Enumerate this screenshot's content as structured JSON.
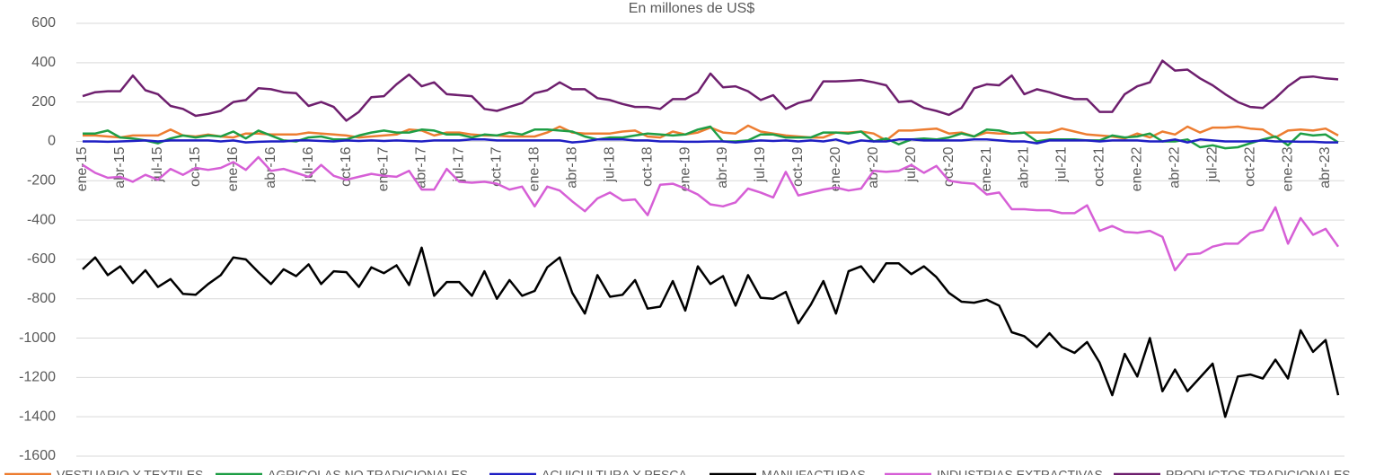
{
  "chart_data": {
    "type": "line",
    "title": "En millones de US$",
    "categories": [
      "ene-15",
      null,
      null,
      "abr-15",
      null,
      null,
      "jul-15",
      null,
      null,
      "oct-15",
      null,
      null,
      "ene-16",
      null,
      null,
      "abr-16",
      null,
      null,
      "jul-16",
      null,
      null,
      "oct-16",
      null,
      null,
      "ene-17",
      null,
      null,
      "abr-17",
      null,
      null,
      "jul-17",
      null,
      null,
      "oct-17",
      null,
      null,
      "ene-18",
      null,
      null,
      "abr-18",
      null,
      null,
      "jul-18",
      null,
      null,
      "oct-18",
      null,
      null,
      "ene-19",
      null,
      null,
      "abr-19",
      null,
      null,
      "jul-19",
      null,
      null,
      "oct-19",
      null,
      null,
      "ene-20",
      null,
      null,
      "abr-20",
      null,
      null,
      "jul-20",
      null,
      null,
      "oct-20",
      null,
      null,
      "ene-21",
      null,
      null,
      "abr-21",
      null,
      null,
      "jul-21",
      null,
      null,
      "oct-21",
      null,
      null,
      "ene-22",
      null,
      null,
      "abr-22",
      null,
      null,
      "jul-22",
      null,
      null,
      "oct-22",
      null,
      null,
      "ene-23",
      null,
      null,
      "abr-23",
      null
    ],
    "series": [
      {
        "name": "VESTUARIO Y TEXTILES",
        "color": "#ed7d31",
        "values": [
          30,
          30,
          25,
          20,
          30,
          30,
          30,
          60,
          30,
          25,
          35,
          25,
          20,
          40,
          40,
          35,
          35,
          35,
          45,
          40,
          35,
          30,
          20,
          25,
          30,
          35,
          60,
          55,
          30,
          45,
          45,
          35,
          30,
          30,
          25,
          25,
          25,
          45,
          75,
          45,
          40,
          40,
          40,
          50,
          55,
          25,
          20,
          50,
          35,
          45,
          70,
          45,
          40,
          80,
          50,
          40,
          30,
          25,
          20,
          20,
          45,
          45,
          50,
          40,
          5,
          55,
          55,
          60,
          65,
          40,
          45,
          25,
          45,
          40,
          40,
          45,
          45,
          45,
          65,
          50,
          35,
          30,
          25,
          15,
          40,
          20,
          50,
          35,
          75,
          45,
          70,
          70,
          75,
          65,
          60,
          20,
          55,
          60,
          55,
          65,
          30
        ]
      },
      {
        "name": "AGRICOLAS NO TRADICIONALES",
        "color": "#1e9e45",
        "values": [
          40,
          40,
          55,
          20,
          15,
          5,
          -10,
          15,
          30,
          20,
          30,
          25,
          50,
          15,
          55,
          30,
          5,
          0,
          20,
          25,
          10,
          10,
          30,
          45,
          55,
          45,
          45,
          60,
          55,
          35,
          35,
          20,
          35,
          30,
          45,
          35,
          60,
          60,
          55,
          50,
          25,
          10,
          20,
          20,
          30,
          40,
          35,
          30,
          35,
          60,
          75,
          0,
          0,
          5,
          35,
          35,
          20,
          20,
          20,
          45,
          45,
          40,
          50,
          0,
          15,
          -15,
          10,
          15,
          10,
          20,
          40,
          25,
          60,
          55,
          40,
          45,
          0,
          10,
          10,
          10,
          5,
          5,
          30,
          20,
          25,
          40,
          0,
          0,
          10,
          -30,
          -20,
          -35,
          -30,
          -10,
          10,
          25,
          -20,
          40,
          30,
          35,
          -5
        ]
      },
      {
        "name": "ACUICULTURA Y PESCA",
        "color": "#1f1fc4",
        "values": [
          0,
          0,
          -2,
          0,
          2,
          5,
          0,
          5,
          5,
          5,
          5,
          0,
          5,
          -5,
          -2,
          0,
          0,
          5,
          5,
          2,
          0,
          5,
          2,
          5,
          2,
          5,
          2,
          0,
          5,
          5,
          5,
          10,
          10,
          5,
          5,
          5,
          5,
          5,
          5,
          -5,
          0,
          10,
          10,
          10,
          5,
          5,
          0,
          0,
          -2,
          -2,
          0,
          0,
          -5,
          0,
          5,
          2,
          5,
          0,
          5,
          0,
          10,
          -10,
          5,
          0,
          0,
          10,
          10,
          5,
          5,
          5,
          5,
          10,
          10,
          5,
          0,
          0,
          -10,
          5,
          5,
          5,
          5,
          0,
          5,
          5,
          5,
          0,
          0,
          10,
          -5,
          10,
          5,
          0,
          0,
          0,
          5,
          0,
          0,
          -2,
          -2,
          -5,
          -5
        ]
      },
      {
        "name": "MANUFACTURAS",
        "color": "#000000",
        "values": [
          -650,
          -590,
          -680,
          -635,
          -720,
          -655,
          -740,
          -700,
          -775,
          -780,
          -725,
          -680,
          -590,
          -600,
          -665,
          -725,
          -650,
          -685,
          -625,
          -725,
          -660,
          -665,
          -740,
          -640,
          -670,
          -630,
          -730,
          -540,
          -785,
          -715,
          -715,
          -785,
          -660,
          -800,
          -705,
          -785,
          -760,
          -640,
          -590,
          -770,
          -875,
          -680,
          -790,
          -780,
          -705,
          -850,
          -840,
          -710,
          -860,
          -635,
          -725,
          -685,
          -835,
          -680,
          -795,
          -800,
          -765,
          -925,
          -830,
          -710,
          -875,
          -660,
          -635,
          -715,
          -620,
          -620,
          -675,
          -635,
          -690,
          -770,
          -815,
          -820,
          -805,
          -835,
          -970,
          -990,
          -1045,
          -975,
          -1045,
          -1075,
          -1020,
          -1125,
          -1290,
          -1080,
          -1195,
          -1000,
          -1270,
          -1160,
          -1270,
          -1200,
          -1130,
          -1400,
          -1195,
          -1185,
          -1205,
          -1110,
          -1205,
          -960,
          -1070,
          -1010,
          -1290
        ]
      },
      {
        "name": "INDUSTRIAS EXTRACTIVAS",
        "color": "#d65fd6",
        "values": [
          -120,
          -160,
          -185,
          -180,
          -205,
          -170,
          -195,
          -140,
          -170,
          -135,
          -145,
          -135,
          -105,
          -145,
          -80,
          -150,
          -140,
          -160,
          -180,
          -120,
          -175,
          -195,
          -180,
          -165,
          -175,
          -180,
          -150,
          -245,
          -245,
          -140,
          -205,
          -210,
          -205,
          -215,
          -245,
          -230,
          -330,
          -230,
          -250,
          -305,
          -355,
          -290,
          -260,
          -300,
          -295,
          -375,
          -220,
          -215,
          -240,
          -270,
          -320,
          -330,
          -310,
          -240,
          -260,
          -285,
          -155,
          -275,
          -260,
          -245,
          -235,
          -250,
          -240,
          -150,
          -155,
          -150,
          -120,
          -160,
          -125,
          -200,
          -210,
          -215,
          -270,
          -260,
          -345,
          -345,
          -350,
          -350,
          -365,
          -365,
          -325,
          -455,
          -430,
          -460,
          -465,
          -455,
          -485,
          -655,
          -575,
          -570,
          -535,
          -520,
          -520,
          -465,
          -450,
          -335,
          -520,
          -390,
          -475,
          -445,
          -535
        ]
      },
      {
        "name": "PRODUCTOS TRADICIONALES",
        "color": "#6e1f6e",
        "values": [
          230,
          250,
          255,
          255,
          335,
          260,
          240,
          180,
          165,
          130,
          140,
          155,
          200,
          210,
          270,
          265,
          250,
          245,
          180,
          200,
          175,
          105,
          150,
          225,
          230,
          290,
          340,
          280,
          300,
          240,
          235,
          230,
          165,
          155,
          175,
          195,
          245,
          260,
          300,
          265,
          265,
          220,
          210,
          190,
          175,
          175,
          165,
          215,
          215,
          250,
          345,
          275,
          280,
          255,
          210,
          235,
          165,
          195,
          210,
          305,
          305,
          308,
          312,
          300,
          285,
          200,
          205,
          170,
          155,
          135,
          170,
          270,
          290,
          285,
          335,
          240,
          265,
          250,
          230,
          215,
          215,
          150,
          150,
          240,
          280,
          300,
          410,
          360,
          365,
          320,
          285,
          240,
          200,
          175,
          170,
          220,
          280,
          325,
          330,
          320,
          315
        ]
      }
    ],
    "ylim": [
      -1600,
      600
    ],
    "yticks": [
      -1600,
      -1400,
      -1200,
      -1000,
      -800,
      -600,
      -400,
      -200,
      0,
      200,
      400,
      600
    ],
    "grid": true,
    "legend": "bottom"
  }
}
